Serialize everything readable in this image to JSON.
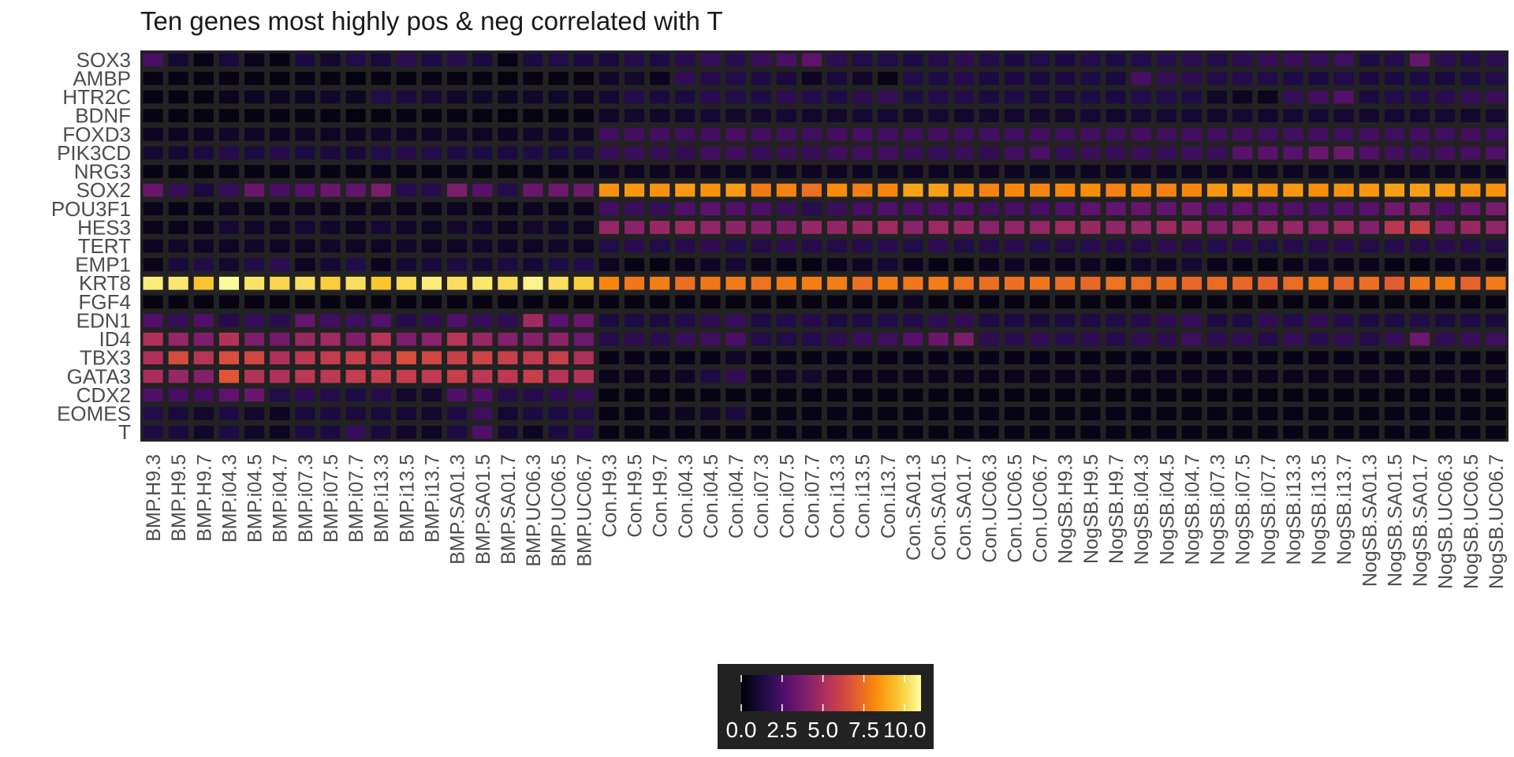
{
  "chart_data": {
    "type": "heatmap",
    "title": "Ten genes most highly pos & neg correlated with T",
    "rows": [
      "SOX3",
      "AMBP",
      "HTR2C",
      "BDNF",
      "FOXD3",
      "PIK3CD",
      "NRG3",
      "SOX2",
      "POU3F1",
      "HES3",
      "TERT",
      "EMP1",
      "KRT8",
      "FGF4",
      "EDN1",
      "ID4",
      "TBX3",
      "GATA3",
      "CDX2",
      "EOMES",
      "T"
    ],
    "columns": [
      "BMP.H9.3",
      "BMP.H9.5",
      "BMP.H9.7",
      "BMP.i04.3",
      "BMP.i04.5",
      "BMP.i04.7",
      "BMP.i07.3",
      "BMP.i07.5",
      "BMP.i07.7",
      "BMP.i13.3",
      "BMP.i13.5",
      "BMP.i13.7",
      "BMP.SA01.3",
      "BMP.SA01.5",
      "BMP.SA01.7",
      "BMP.UC06.3",
      "BMP.UC06.5",
      "BMP.UC06.7",
      "Con.H9.3",
      "Con.H9.5",
      "Con.H9.7",
      "Con.i04.3",
      "Con.i04.5",
      "Con.i04.7",
      "Con.i07.3",
      "Con.i07.5",
      "Con.i07.7",
      "Con.i13.3",
      "Con.i13.5",
      "Con.i13.7",
      "Con.SA01.3",
      "Con.SA01.5",
      "Con.SA01.7",
      "Con.UC06.3",
      "Con.UC06.5",
      "Con.UC06.7",
      "NogSB.H9.3",
      "NogSB.H9.5",
      "NogSB.H9.7",
      "NogSB.i04.3",
      "NogSB.i04.5",
      "NogSB.i04.7",
      "NogSB.i07.3",
      "NogSB.i07.5",
      "NogSB.i07.7",
      "NogSB.i13.3",
      "NogSB.i13.5",
      "NogSB.i13.7",
      "NogSB.SA01.3",
      "NogSB.SA01.5",
      "NogSB.SA01.7",
      "NogSB.UC06.3",
      "NogSB.UC06.5",
      "NogSB.UC06.7"
    ],
    "values": [
      [
        2.5,
        1.0,
        0.4,
        1.2,
        0.5,
        0.3,
        1.3,
        0.9,
        1.5,
        1.2,
        1.8,
        1.4,
        1.7,
        1.2,
        0.4,
        1.3,
        1.5,
        1.3,
        1.2,
        1.6,
        1.4,
        1.7,
        2.0,
        1.7,
        2.1,
        2.5,
        3.0,
        1.8,
        1.5,
        1.5,
        1.4,
        1.6,
        1.8,
        1.5,
        1.3,
        1.5,
        1.3,
        1.6,
        1.4,
        1.5,
        1.7,
        1.8,
        1.5,
        1.8,
        2.0,
        2.1,
        2.0,
        2.2,
        1.4,
        1.6,
        3.2,
        1.8,
        1.6,
        1.8
      ],
      [
        0.4,
        0.3,
        0.3,
        0.3,
        0.3,
        0.2,
        0.3,
        0.3,
        0.2,
        0.3,
        0.2,
        0.3,
        0.3,
        0.3,
        0.2,
        0.3,
        0.3,
        0.3,
        0.8,
        0.9,
        0.5,
        1.9,
        1.6,
        1.5,
        1.4,
        1.2,
        0.6,
        1.2,
        0.8,
        0.4,
        1.5,
        1.4,
        1.6,
        1.3,
        1.3,
        1.2,
        1.3,
        1.4,
        1.2,
        2.4,
        2.0,
        1.8,
        1.5,
        1.6,
        1.5,
        1.4,
        1.3,
        1.5,
        1.3,
        1.3,
        1.4,
        1.2,
        1.4,
        1.5
      ],
      [
        0.3,
        0.3,
        0.3,
        0.5,
        0.6,
        0.6,
        0.6,
        0.8,
        0.6,
        1.5,
        1.3,
        1.1,
        0.8,
        0.8,
        0.6,
        0.8,
        0.8,
        0.7,
        1.0,
        1.6,
        1.3,
        1.3,
        1.7,
        1.5,
        1.4,
        1.8,
        1.6,
        1.4,
        1.8,
        2.0,
        1.4,
        1.5,
        1.6,
        1.3,
        1.4,
        1.2,
        1.2,
        1.4,
        1.3,
        1.6,
        1.5,
        1.4,
        0.8,
        0.6,
        0.5,
        2.0,
        2.3,
        2.7,
        1.3,
        1.5,
        1.6,
        1.7,
        2.0,
        2.1
      ],
      [
        0.3,
        0.3,
        0.3,
        0.3,
        0.3,
        0.3,
        0.3,
        0.3,
        0.2,
        0.3,
        0.3,
        0.3,
        0.3,
        0.3,
        0.2,
        0.3,
        0.3,
        0.3,
        0.8,
        0.9,
        0.8,
        0.9,
        1.0,
        0.9,
        0.9,
        1.0,
        0.9,
        0.9,
        1.0,
        1.0,
        0.9,
        1.0,
        0.9,
        0.9,
        0.9,
        0.9,
        0.9,
        1.0,
        0.9,
        1.0,
        1.0,
        1.0,
        0.9,
        1.0,
        0.9,
        1.0,
        1.0,
        1.0,
        0.9,
        1.0,
        1.0,
        1.0,
        0.9,
        1.0
      ],
      [
        0.6,
        0.6,
        0.6,
        0.8,
        0.7,
        0.6,
        0.7,
        0.7,
        0.6,
        0.8,
        0.7,
        0.7,
        0.7,
        0.7,
        0.6,
        0.8,
        0.8,
        0.7,
        2.2,
        2.3,
        2.3,
        2.2,
        2.3,
        2.4,
        2.3,
        2.3,
        2.2,
        2.3,
        2.4,
        2.3,
        2.2,
        2.3,
        2.2,
        2.3,
        2.2,
        2.3,
        2.2,
        2.3,
        2.2,
        2.3,
        2.2,
        2.3,
        2.2,
        2.3,
        2.2,
        2.3,
        2.3,
        2.2,
        2.3,
        2.2,
        2.3,
        2.2,
        2.3,
        2.2
      ],
      [
        1.0,
        1.0,
        1.3,
        1.6,
        1.3,
        1.6,
        1.3,
        1.2,
        1.1,
        1.5,
        1.6,
        1.5,
        1.4,
        1.4,
        1.3,
        1.4,
        1.3,
        1.4,
        2.0,
        2.1,
        2.0,
        1.9,
        2.3,
        2.2,
        2.0,
        2.1,
        2.0,
        2.2,
        2.3,
        2.3,
        2.1,
        2.0,
        2.1,
        1.9,
        2.3,
        2.5,
        2.0,
        2.1,
        2.0,
        2.1,
        2.0,
        2.2,
        2.1,
        2.9,
        2.9,
        2.8,
        3.3,
        3.4,
        2.6,
        2.3,
        2.2,
        2.3,
        2.4,
        2.6
      ],
      [
        0.3,
        0.3,
        0.3,
        0.4,
        0.3,
        0.3,
        0.4,
        0.3,
        0.3,
        0.4,
        0.3,
        0.3,
        0.4,
        0.3,
        0.3,
        0.4,
        0.3,
        0.3,
        0.6,
        0.6,
        0.6,
        0.6,
        0.6,
        0.6,
        0.6,
        0.6,
        0.6,
        0.6,
        0.6,
        0.6,
        0.6,
        0.6,
        0.6,
        0.6,
        0.6,
        0.6,
        0.6,
        0.6,
        0.6,
        0.6,
        0.6,
        0.6,
        0.6,
        0.6,
        0.6,
        0.6,
        0.6,
        0.6,
        0.6,
        0.6,
        0.6,
        0.6,
        0.6,
        0.6
      ],
      [
        3.3,
        2.0,
        1.2,
        2.0,
        3.3,
        2.4,
        2.8,
        3.3,
        3.1,
        3.8,
        1.6,
        1.6,
        3.8,
        2.8,
        1.6,
        3.3,
        3.4,
        3.5,
        8.4,
        8.5,
        8.4,
        8.6,
        8.4,
        8.6,
        7.8,
        8.0,
        7.5,
        8.2,
        7.9,
        8.1,
        8.8,
        8.7,
        8.5,
        8.0,
        8.1,
        8.1,
        8.1,
        8.3,
        8.0,
        8.1,
        8.0,
        8.1,
        8.5,
        8.6,
        8.4,
        8.5,
        8.3,
        8.4,
        8.5,
        8.7,
        8.7,
        8.6,
        8.4,
        8.4
      ],
      [
        0.5,
        0.4,
        0.4,
        0.6,
        0.5,
        0.5,
        0.6,
        0.5,
        0.5,
        0.6,
        0.5,
        0.5,
        0.6,
        0.5,
        0.5,
        0.6,
        0.5,
        0.5,
        2.3,
        2.1,
        2.0,
        2.6,
        2.9,
        2.6,
        2.5,
        2.1,
        1.7,
        2.1,
        2.4,
        2.6,
        2.5,
        2.5,
        2.6,
        2.3,
        2.4,
        2.4,
        2.6,
        3.0,
        3.1,
        3.2,
        3.1,
        3.4,
        2.7,
        3.0,
        2.9,
        2.6,
        2.5,
        2.6,
        2.8,
        3.5,
        3.8,
        2.5,
        3.3,
        3.7
      ],
      [
        0.5,
        0.5,
        0.5,
        1.0,
        0.8,
        0.7,
        1.0,
        0.8,
        0.6,
        1.0,
        0.8,
        0.7,
        0.9,
        0.8,
        0.6,
        0.9,
        0.8,
        0.7,
        4.5,
        4.2,
        4.6,
        4.7,
        4.4,
        4.3,
        4.1,
        3.9,
        4.5,
        4.4,
        4.6,
        4.8,
        4.2,
        4.7,
        4.6,
        4.2,
        4.4,
        4.5,
        4.8,
        4.6,
        4.4,
        4.5,
        4.7,
        4.6,
        4.0,
        4.5,
        4.4,
        4.5,
        4.2,
        4.7,
        4.0,
        5.5,
        6.0,
        3.8,
        4.6,
        4.4
      ],
      [
        0.6,
        0.8,
        0.7,
        0.7,
        0.8,
        0.7,
        0.7,
        0.8,
        0.7,
        0.7,
        0.8,
        0.7,
        0.7,
        0.8,
        0.7,
        0.7,
        0.8,
        0.7,
        1.5,
        1.7,
        1.5,
        1.6,
        1.8,
        1.6,
        1.5,
        1.8,
        1.6,
        1.5,
        1.6,
        1.7,
        1.5,
        1.8,
        1.5,
        1.6,
        1.7,
        1.6,
        1.5,
        1.7,
        1.6,
        1.5,
        1.8,
        1.6,
        1.6,
        1.7,
        1.5,
        1.6,
        1.6,
        1.7,
        1.5,
        1.6,
        1.6,
        1.7,
        1.6,
        1.5
      ],
      [
        0.5,
        1.2,
        1.5,
        0.9,
        1.5,
        1.8,
        0.6,
        1.0,
        1.5,
        0.5,
        1.0,
        1.2,
        1.3,
        1.0,
        1.3,
        1.0,
        1.4,
        1.5,
        0.6,
        0.4,
        0.3,
        0.5,
        0.7,
        1.0,
        0.5,
        0.4,
        0.3,
        0.5,
        0.7,
        1.0,
        0.5,
        0.4,
        0.3,
        0.5,
        0.7,
        0.5,
        0.5,
        0.6,
        0.4,
        0.8,
        0.7,
        1.0,
        0.5,
        0.4,
        0.3,
        0.5,
        0.7,
        0.5,
        0.5,
        0.4,
        0.3,
        0.5,
        0.7,
        0.5
      ],
      [
        10.5,
        10.4,
        9.6,
        10.9,
        10.3,
        10.0,
        10.2,
        9.8,
        10.2,
        9.6,
        10.1,
        10.5,
        10.2,
        10.4,
        10.1,
        10.7,
        10.2,
        9.8,
        8.1,
        7.7,
        7.9,
        7.5,
        7.7,
        7.8,
        7.6,
        7.8,
        7.9,
        7.9,
        7.5,
        7.9,
        7.7,
        7.9,
        7.6,
        7.5,
        7.5,
        7.7,
        7.5,
        7.3,
        7.6,
        7.4,
        7.5,
        7.3,
        7.4,
        7.3,
        7.2,
        7.4,
        7.7,
        7.3,
        7.5,
        7.0,
        7.7,
        7.9,
        7.2,
        7.8
      ],
      [
        0.3,
        0.3,
        0.3,
        0.3,
        0.3,
        0.3,
        0.3,
        0.3,
        0.3,
        0.3,
        0.3,
        0.3,
        0.3,
        0.3,
        0.3,
        0.3,
        0.3,
        0.3,
        0.3,
        0.3,
        0.3,
        0.3,
        0.3,
        0.3,
        0.3,
        0.3,
        0.3,
        0.3,
        0.3,
        0.3,
        0.6,
        0.3,
        0.3,
        0.3,
        0.3,
        0.3,
        0.3,
        0.3,
        0.3,
        0.3,
        0.3,
        0.3,
        0.3,
        0.3,
        0.3,
        0.3,
        0.3,
        0.3,
        0.3,
        0.3,
        0.3,
        0.3,
        0.3,
        0.3
      ],
      [
        2.6,
        2.0,
        2.6,
        1.6,
        2.0,
        1.7,
        3.2,
        2.3,
        2.2,
        2.7,
        1.6,
        1.9,
        2.6,
        2.0,
        1.8,
        4.8,
        2.9,
        3.3,
        1.3,
        1.4,
        1.3,
        1.5,
        1.8,
        2.1,
        1.4,
        1.5,
        1.6,
        1.3,
        1.4,
        1.5,
        1.5,
        1.8,
        1.9,
        1.4,
        1.3,
        1.2,
        1.3,
        1.4,
        1.5,
        1.6,
        1.8,
        2.0,
        1.3,
        1.4,
        1.9,
        1.6,
        1.9,
        1.6,
        1.3,
        1.4,
        1.5,
        1.3,
        1.4,
        1.2
      ],
      [
        5.2,
        4.5,
        3.9,
        5.3,
        3.8,
        3.6,
        4.6,
        4.8,
        3.9,
        5.4,
        3.8,
        4.2,
        5.4,
        4.6,
        4.0,
        4.1,
        4.3,
        3.4,
        1.6,
        1.8,
        1.7,
        2.1,
        2.2,
        2.5,
        1.6,
        1.5,
        1.6,
        1.8,
        2.1,
        2.2,
        2.8,
        3.3,
        3.8,
        1.8,
        1.7,
        1.9,
        1.7,
        1.8,
        1.6,
        1.9,
        1.8,
        2.2,
        1.8,
        1.9,
        1.6,
        2.0,
        1.7,
        1.9,
        1.6,
        2.0,
        3.4,
        1.9,
        2.1,
        2.2
      ],
      [
        5.2,
        6.4,
        5.4,
        6.5,
        6.2,
        5.2,
        5.6,
        5.8,
        5.9,
        5.7,
        6.5,
        6.2,
        5.9,
        6.1,
        5.9,
        5.7,
        5.9,
        5.1,
        0.4,
        0.4,
        0.4,
        0.4,
        0.4,
        0.7,
        0.4,
        0.4,
        0.4,
        0.4,
        0.4,
        0.4,
        0.4,
        0.4,
        0.4,
        0.4,
        0.4,
        0.4,
        0.4,
        0.4,
        0.4,
        0.4,
        0.4,
        0.4,
        0.4,
        0.4,
        0.4,
        0.4,
        0.4,
        0.4,
        0.4,
        0.4,
        0.4,
        0.4,
        0.4,
        0.4
      ],
      [
        5.0,
        4.6,
        4.0,
        6.8,
        5.3,
        5.2,
        5.6,
        5.6,
        5.8,
        5.9,
        5.8,
        5.7,
        5.9,
        5.6,
        5.6,
        5.9,
        5.4,
        5.3,
        0.5,
        0.5,
        0.5,
        0.7,
        1.4,
        1.9,
        0.5,
        0.6,
        0.9,
        0.5,
        0.5,
        0.5,
        0.5,
        0.5,
        0.5,
        0.5,
        0.5,
        0.5,
        0.5,
        0.5,
        0.5,
        0.5,
        0.5,
        0.5,
        0.5,
        0.5,
        0.5,
        0.5,
        0.5,
        0.5,
        0.5,
        0.5,
        0.5,
        0.5,
        0.5,
        0.5
      ],
      [
        2.6,
        2.4,
        2.3,
        3.0,
        3.3,
        1.5,
        1.8,
        1.6,
        1.4,
        1.6,
        0.9,
        0.9,
        2.6,
        2.6,
        1.6,
        1.6,
        1.8,
        2.0,
        0.3,
        0.3,
        0.3,
        0.3,
        0.3,
        0.3,
        0.3,
        0.3,
        0.3,
        0.3,
        0.3,
        0.3,
        0.3,
        0.3,
        0.3,
        0.3,
        0.3,
        0.3,
        0.3,
        0.3,
        0.3,
        0.3,
        0.3,
        0.3,
        0.3,
        0.3,
        0.3,
        0.3,
        0.3,
        0.3,
        0.3,
        0.3,
        0.3,
        0.3,
        0.3,
        0.3
      ],
      [
        1.5,
        1.2,
        0.9,
        1.4,
        0.9,
        0.6,
        1.2,
        1.3,
        1.2,
        1.2,
        1.0,
        0.9,
        1.4,
        2.2,
        1.0,
        1.3,
        1.4,
        1.5,
        0.4,
        0.4,
        0.5,
        0.6,
        0.8,
        1.2,
        0.4,
        0.4,
        0.4,
        0.4,
        0.4,
        0.4,
        0.4,
        0.4,
        0.4,
        0.4,
        0.4,
        0.4,
        0.4,
        0.4,
        0.4,
        0.4,
        0.4,
        0.4,
        0.4,
        0.4,
        0.4,
        0.4,
        0.4,
        0.4,
        0.4,
        0.4,
        0.4,
        0.4,
        0.4,
        0.4
      ],
      [
        1.4,
        1.2,
        0.8,
        1.4,
        0.8,
        0.6,
        1.4,
        1.3,
        2.0,
        1.2,
        0.8,
        0.7,
        1.4,
        2.6,
        1.0,
        0.6,
        1.3,
        1.6,
        0.4,
        0.4,
        0.4,
        0.4,
        0.4,
        0.4,
        0.4,
        0.4,
        0.4,
        0.4,
        0.4,
        0.4,
        0.4,
        0.4,
        0.4,
        0.4,
        0.4,
        0.4,
        0.4,
        0.4,
        0.4,
        0.4,
        0.4,
        0.4,
        0.4,
        0.4,
        0.4,
        0.4,
        0.4,
        0.4,
        0.4,
        0.4,
        0.4,
        0.4,
        0.4,
        0.4
      ]
    ],
    "colorscale": "inferno",
    "zlim": [
      0,
      11
    ],
    "colorbar": {
      "ticks": [
        0,
        2.5,
        5,
        7.5,
        10
      ],
      "tick_labels": [
        "0.0",
        "2.5",
        "5.0",
        "7.5",
        "10.0"
      ],
      "placement": "bottom-center"
    },
    "background_color": "#222222"
  }
}
